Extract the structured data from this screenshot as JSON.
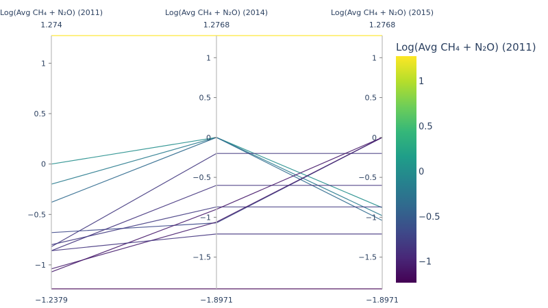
{
  "chart_data": {
    "type": "parallel-coordinates",
    "dimensions": [
      {
        "label": "Log(Avg CH₄ + N₂O) (2011)",
        "range_top": "1.274",
        "range_bottom": "−1.2379",
        "ylim": [
          -1.2379,
          1.274
        ],
        "ticks": [
          {
            "value": 1,
            "label": "1"
          },
          {
            "value": 0.5,
            "label": "0.5"
          },
          {
            "value": 0,
            "label": "0"
          },
          {
            "value": -0.5,
            "label": "−0.5"
          },
          {
            "value": -1,
            "label": "−1"
          }
        ]
      },
      {
        "label": "Log(Avg CH₄ + N₂O) (2014)",
        "range_top": "1.2768",
        "range_bottom": "−1.8971",
        "ylim": [
          -1.8971,
          1.2768
        ],
        "ticks": [
          {
            "value": 1,
            "label": "1"
          },
          {
            "value": 0.5,
            "label": "0.5"
          },
          {
            "value": 0,
            "label": "0"
          },
          {
            "value": -0.5,
            "label": "−0.5"
          },
          {
            "value": -1,
            "label": "−1"
          },
          {
            "value": -1.5,
            "label": "−1.5"
          }
        ]
      },
      {
        "label": "Log(Avg CH₄ + N₂O) (2015)",
        "range_top": "1.2768",
        "range_bottom": "−1.8971",
        "ylim": [
          -1.8971,
          1.2768
        ],
        "ticks": [
          {
            "value": 1,
            "label": "1"
          },
          {
            "value": 0.5,
            "label": "0.5"
          },
          {
            "value": 0,
            "label": "0"
          },
          {
            "value": -0.5,
            "label": "−0.5"
          },
          {
            "value": -1,
            "label": "−1"
          },
          {
            "value": -1.5,
            "label": "−1.5"
          }
        ]
      }
    ],
    "lines": [
      [
        1.274,
        1.2768,
        1.2768
      ],
      [
        0.0,
        0.0,
        -0.88
      ],
      [
        -0.2,
        0.0,
        -0.98
      ],
      [
        -0.38,
        0.0,
        -1.04
      ],
      [
        -0.82,
        -0.2,
        -0.2
      ],
      [
        -0.68,
        -1.07,
        0.0
      ],
      [
        -0.86,
        -0.6,
        -0.6
      ],
      [
        -0.8,
        -0.87,
        -0.87
      ],
      [
        -1.04,
        -1.06,
        0.0
      ],
      [
        -1.07,
        -0.9,
        0.0
      ],
      [
        -0.86,
        -1.21,
        -1.21
      ],
      [
        -1.2379,
        -1.8971,
        -1.8971
      ]
    ],
    "colorbar": {
      "title": "Log(Avg CH₄ + N₂O) (2011)",
      "colorscale": "viridis",
      "range": [
        -1.2379,
        1.274
      ],
      "ticks": [
        {
          "value": 1,
          "label": "1"
        },
        {
          "value": 0.5,
          "label": "0.5"
        },
        {
          "value": 0,
          "label": "0"
        },
        {
          "value": -0.5,
          "label": "−0.5"
        },
        {
          "value": -1,
          "label": "−1"
        }
      ]
    }
  }
}
